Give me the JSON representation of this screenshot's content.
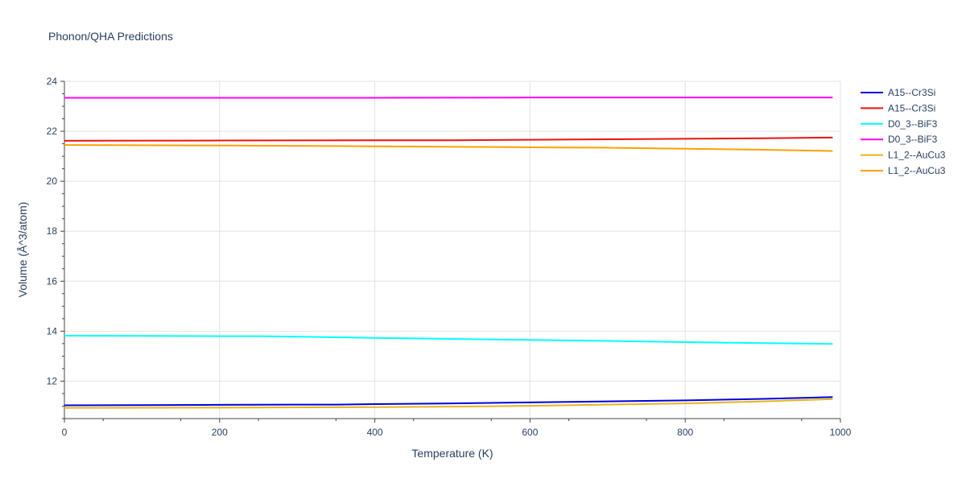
{
  "chart_data": {
    "type": "line",
    "title": "Phonon/QHA Predictions",
    "xlabel": "Temperature (K)",
    "ylabel": "Volume (Å^3/atom)",
    "xlim": [
      0,
      1000
    ],
    "ylim": [
      10.5,
      24
    ],
    "xticks": [
      "0",
      "200",
      "400",
      "600",
      "800",
      "1000"
    ],
    "yticks": [
      "12",
      "14",
      "16",
      "18",
      "20",
      "22",
      "24"
    ],
    "grid": true,
    "legend_position": "right",
    "series": [
      {
        "name": "A15--Cr3Si",
        "color": "#0000dd",
        "x": [
          0,
          100,
          200,
          300,
          350,
          400,
          500,
          600,
          700,
          800,
          900,
          990
        ],
        "y": [
          11.03,
          11.04,
          11.05,
          11.06,
          11.06,
          11.08,
          11.11,
          11.15,
          11.19,
          11.23,
          11.29,
          11.36
        ]
      },
      {
        "name": "A15--Cr3Si",
        "color": "#ee1111",
        "x": [
          0,
          200,
          400,
          500,
          600,
          700,
          800,
          900,
          990
        ],
        "y": [
          21.62,
          21.63,
          21.64,
          21.64,
          21.66,
          21.68,
          21.7,
          21.72,
          21.75
        ]
      },
      {
        "name": "D0_3--BiF3",
        "color": "#00ffff",
        "x": [
          0,
          100,
          200,
          250,
          300,
          400,
          500,
          600,
          700,
          800,
          900,
          990
        ],
        "y": [
          13.82,
          13.81,
          13.8,
          13.8,
          13.78,
          13.73,
          13.69,
          13.65,
          13.61,
          13.56,
          13.52,
          13.49
        ]
      },
      {
        "name": "D0_3--BiF3",
        "color": "#ff00ff",
        "x": [
          0,
          200,
          400,
          600,
          800,
          990
        ],
        "y": [
          23.34,
          23.34,
          23.34,
          23.35,
          23.35,
          23.35
        ]
      },
      {
        "name": "L1_2--AuCu3",
        "color": "#e6b41e",
        "x": [
          0,
          200,
          400,
          500,
          600,
          700,
          800,
          900,
          990
        ],
        "y": [
          10.93,
          10.94,
          10.96,
          10.98,
          11.01,
          11.06,
          11.11,
          11.19,
          11.28
        ]
      },
      {
        "name": "L1_2--AuCu3",
        "color": "#ffa000",
        "x": [
          0,
          200,
          400,
          500,
          600,
          700,
          800,
          900,
          990
        ],
        "y": [
          21.45,
          21.43,
          21.4,
          21.38,
          21.36,
          21.34,
          21.3,
          21.26,
          21.21
        ]
      }
    ]
  }
}
